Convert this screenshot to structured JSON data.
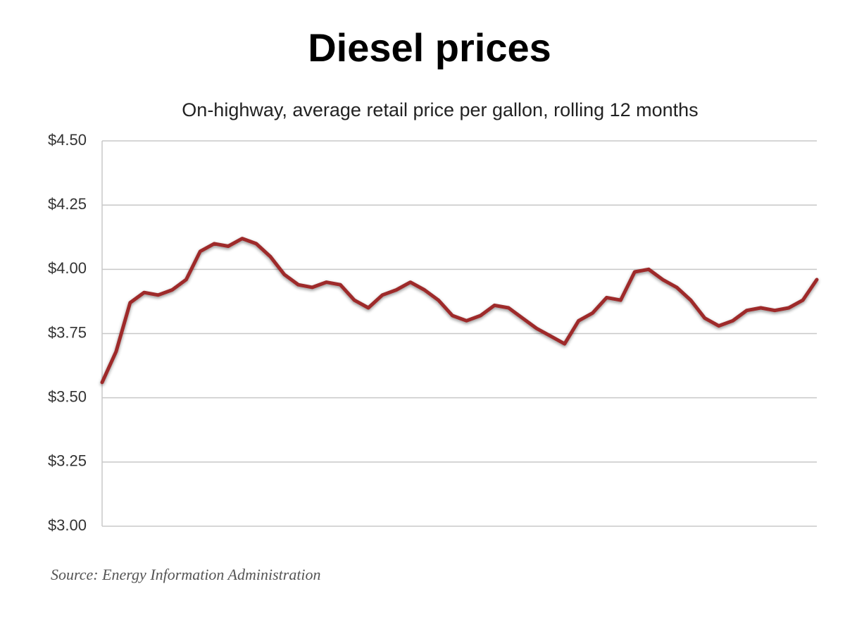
{
  "chart_data": {
    "type": "line",
    "title": "Diesel prices",
    "subtitle": "On-highway, average retail price per gallon, rolling 12 months",
    "source": "Source: Energy Information Administration",
    "categories": [
      null,
      null,
      null,
      null,
      null,
      null,
      null,
      null,
      null,
      null,
      null,
      null,
      null,
      null,
      null,
      null,
      null,
      null,
      null,
      null,
      null,
      null,
      null,
      null,
      null,
      null,
      null,
      null,
      null,
      null,
      null,
      null,
      null,
      null,
      null,
      null,
      null,
      null,
      null,
      null,
      null,
      null,
      null,
      null,
      null,
      null,
      null,
      null,
      null,
      null,
      null,
      null
    ],
    "series": [
      {
        "name": "Diesel price",
        "color": "#9e2a2b",
        "values": [
          3.56,
          3.68,
          3.87,
          3.91,
          3.9,
          3.92,
          3.96,
          4.07,
          4.1,
          4.09,
          4.12,
          4.1,
          4.05,
          3.98,
          3.94,
          3.93,
          3.95,
          3.94,
          3.88,
          3.85,
          3.9,
          3.92,
          3.95,
          3.92,
          3.88,
          3.82,
          3.8,
          3.82,
          3.86,
          3.85,
          3.81,
          3.77,
          3.74,
          3.71,
          3.8,
          3.83,
          3.89,
          3.88,
          3.99,
          4.0,
          3.96,
          3.93,
          3.88,
          3.81,
          3.78,
          3.8,
          3.84,
          3.85,
          3.84,
          3.85,
          3.88,
          3.96
        ]
      }
    ],
    "ylim": [
      3.0,
      4.5
    ],
    "yticks": [
      {
        "value": 3.0,
        "label": "$3.00"
      },
      {
        "value": 3.25,
        "label": "$3.25"
      },
      {
        "value": 3.5,
        "label": "$3.50"
      },
      {
        "value": 3.75,
        "label": "$3.75"
      },
      {
        "value": 4.0,
        "label": "$4.00"
      },
      {
        "value": 4.25,
        "label": "$4.25"
      },
      {
        "value": 4.5,
        "label": "$4.50"
      }
    ],
    "grid": true
  }
}
